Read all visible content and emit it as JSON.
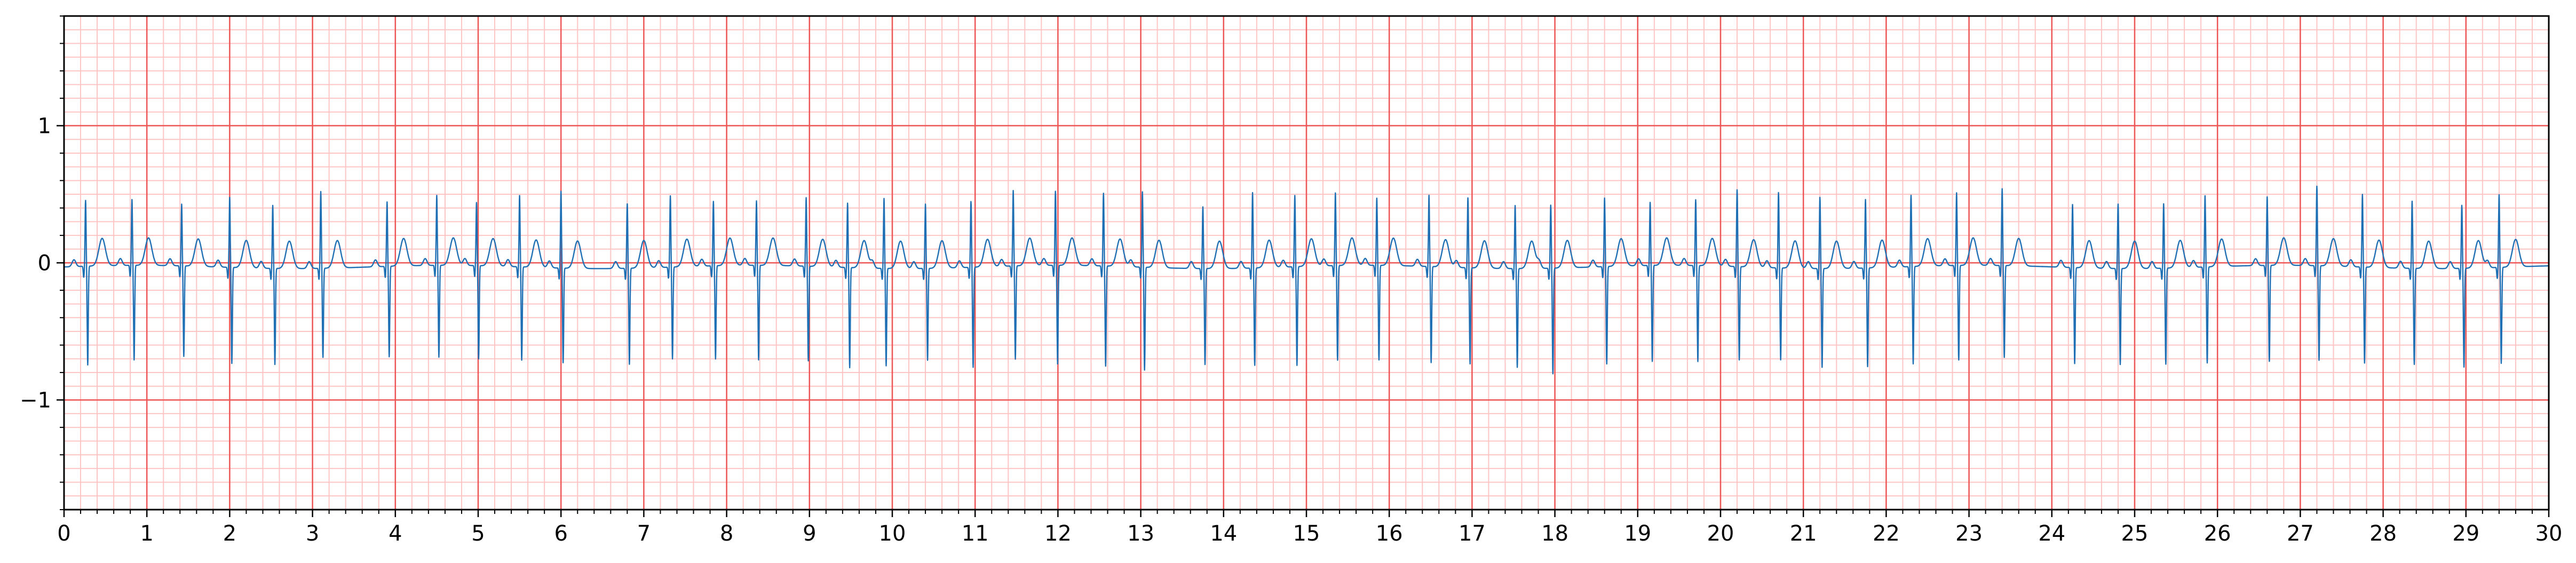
{
  "chart_data": {
    "type": "line",
    "title": "",
    "xlabel": "",
    "ylabel": "",
    "xlim": [
      0,
      30
    ],
    "ylim": [
      -1.8,
      1.8
    ],
    "x_ticks": [
      0,
      1,
      2,
      3,
      4,
      5,
      6,
      7,
      8,
      9,
      10,
      11,
      12,
      13,
      14,
      15,
      16,
      17,
      18,
      19,
      20,
      21,
      22,
      23,
      24,
      25,
      26,
      27,
      28,
      29,
      30
    ],
    "y_ticks": [
      -1,
      0,
      1
    ],
    "y_tick_labels": [
      "−1",
      "0",
      "1"
    ],
    "grid": {
      "major": {
        "x_step": 1,
        "y_step": 1,
        "color": "#ee5555"
      },
      "minor": {
        "x_step": 0.2,
        "y_step": 0.1,
        "color": "#ffc4c4"
      }
    },
    "series": [
      {
        "color": "#1f6fb4",
        "beats": [
          {
            "t": 0.26,
            "r": 0.45,
            "s": -0.72
          },
          {
            "t": 0.82,
            "r": 0.45,
            "s": -0.69
          },
          {
            "t": 1.42,
            "r": 0.42,
            "s": -0.66
          },
          {
            "t": 2.0,
            "r": 0.48,
            "s": -0.7
          },
          {
            "t": 2.52,
            "r": 0.43,
            "s": -0.7
          },
          {
            "t": 3.1,
            "r": 0.53,
            "s": -0.65
          },
          {
            "t": 3.9,
            "r": 0.44,
            "s": -0.66
          },
          {
            "t": 4.5,
            "r": 0.48,
            "s": -0.67
          },
          {
            "t": 4.98,
            "r": 0.43,
            "s": -0.68
          },
          {
            "t": 5.5,
            "r": 0.49,
            "s": -0.68
          },
          {
            "t": 6.0,
            "r": 0.53,
            "s": -0.69
          },
          {
            "t": 6.8,
            "r": 0.44,
            "s": -0.7
          },
          {
            "t": 7.32,
            "r": 0.49,
            "s": -0.67
          },
          {
            "t": 7.84,
            "r": 0.44,
            "s": -0.68
          },
          {
            "t": 8.36,
            "r": 0.44,
            "s": -0.69
          },
          {
            "t": 8.96,
            "r": 0.47,
            "s": -0.69
          },
          {
            "t": 9.46,
            "r": 0.44,
            "s": -0.73
          },
          {
            "t": 9.9,
            "r": 0.48,
            "s": -0.71
          },
          {
            "t": 10.4,
            "r": 0.44,
            "s": -0.67
          },
          {
            "t": 10.95,
            "r": 0.45,
            "s": -0.73
          },
          {
            "t": 11.46,
            "r": 0.52,
            "s": -0.68
          },
          {
            "t": 11.97,
            "r": 0.51,
            "s": -0.72
          },
          {
            "t": 12.55,
            "r": 0.5,
            "s": -0.73
          },
          {
            "t": 13.02,
            "r": 0.52,
            "s": -0.75
          },
          {
            "t": 13.75,
            "r": 0.42,
            "s": -0.7
          },
          {
            "t": 14.35,
            "r": 0.52,
            "s": -0.71
          },
          {
            "t": 14.86,
            "r": 0.49,
            "s": -0.72
          },
          {
            "t": 15.35,
            "r": 0.5,
            "s": -0.69
          },
          {
            "t": 15.85,
            "r": 0.46,
            "s": -0.69
          },
          {
            "t": 16.48,
            "r": 0.49,
            "s": -0.7
          },
          {
            "t": 16.95,
            "r": 0.48,
            "s": -0.7
          },
          {
            "t": 17.52,
            "r": 0.43,
            "s": -0.72
          },
          {
            "t": 17.95,
            "r": 0.43,
            "s": -0.77
          },
          {
            "t": 18.6,
            "r": 0.47,
            "s": -0.71
          },
          {
            "t": 19.15,
            "r": 0.43,
            "s": -0.7
          },
          {
            "t": 19.7,
            "r": 0.45,
            "s": -0.7
          },
          {
            "t": 20.2,
            "r": 0.53,
            "s": -0.68
          },
          {
            "t": 20.7,
            "r": 0.52,
            "s": -0.67
          },
          {
            "t": 21.2,
            "r": 0.49,
            "s": -0.72
          },
          {
            "t": 21.75,
            "r": 0.47,
            "s": -0.72
          },
          {
            "t": 22.3,
            "r": 0.49,
            "s": -0.71
          },
          {
            "t": 22.85,
            "r": 0.5,
            "s": -0.69
          },
          {
            "t": 23.4,
            "r": 0.53,
            "s": -0.67
          },
          {
            "t": 24.25,
            "r": 0.43,
            "s": -0.7
          },
          {
            "t": 24.8,
            "r": 0.44,
            "s": -0.7
          },
          {
            "t": 25.35,
            "r": 0.44,
            "s": -0.7
          },
          {
            "t": 25.85,
            "r": 0.49,
            "s": -0.7
          },
          {
            "t": 26.6,
            "r": 0.47,
            "s": -0.7
          },
          {
            "t": 27.2,
            "r": 0.55,
            "s": -0.69
          },
          {
            "t": 27.75,
            "r": 0.5,
            "s": -0.7
          },
          {
            "t": 28.35,
            "r": 0.46,
            "s": -0.7
          },
          {
            "t": 28.95,
            "r": 0.43,
            "s": -0.72
          },
          {
            "t": 29.4,
            "r": 0.5,
            "s": -0.7
          }
        ]
      }
    ]
  }
}
